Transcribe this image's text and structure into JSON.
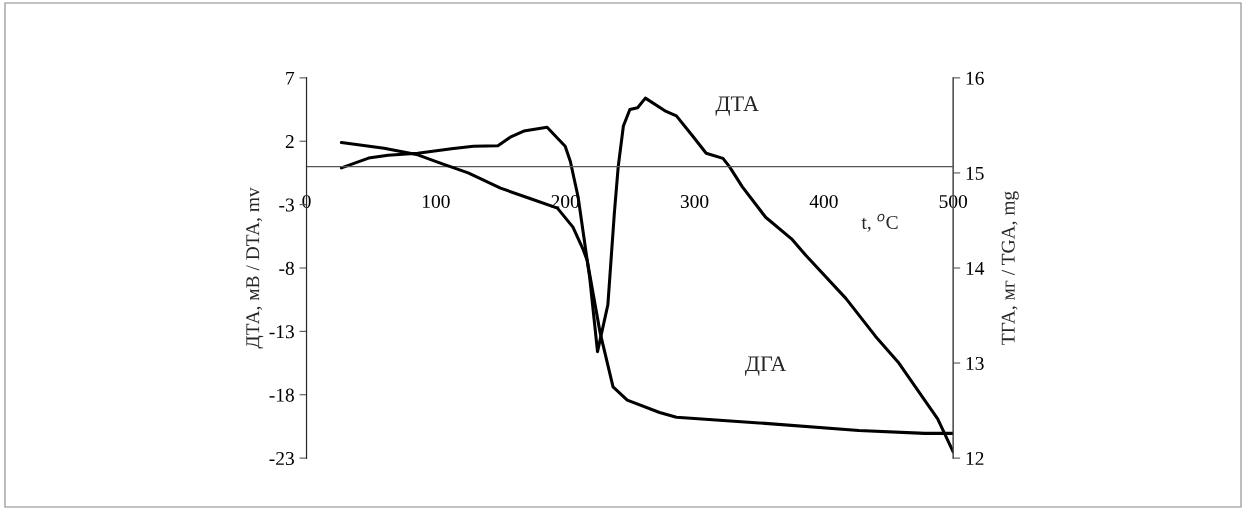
{
  "chart_data": {
    "type": "line",
    "xlabel": "t, $^{o}$C",
    "ylabel": "ДТА, мВ / DTA, mv",
    "y2label": "ТГА, мг / TGA, mg",
    "xlim": [
      0,
      500
    ],
    "xticks": [
      0,
      100,
      200,
      300,
      400,
      500
    ],
    "ylim": [
      -23,
      7
    ],
    "yticks": [
      -23,
      -18,
      -13,
      -8,
      -3,
      2,
      7
    ],
    "y2lim": [
      12,
      16
    ],
    "y2ticks": [
      12,
      13,
      14,
      15,
      16
    ],
    "grid": false,
    "marker": "none",
    "line_style": "solid",
    "series": [
      {
        "color": "#000000",
        "x": [
          27,
          48,
          63,
          86,
          112,
          129,
          148,
          158,
          168,
          186,
          200,
          204,
          210,
          219,
          225,
          233,
          238,
          241,
          245,
          250,
          256,
          262,
          278,
          286,
          299,
          309,
          322,
          327,
          337,
          355,
          375,
          386,
          417,
          440,
          458,
          488,
          500
        ],
        "values": [
          -0.1,
          0.67,
          0.9,
          1.05,
          1.4,
          1.6,
          1.65,
          2.35,
          2.8,
          3.1,
          1.6,
          0.4,
          -2.4,
          -8.8,
          -14.6,
          -10.9,
          -3.7,
          0,
          3.2,
          4.5,
          4.65,
          5.4,
          4.35,
          4.0,
          2.35,
          1.05,
          0.65,
          0,
          -1.6,
          -4.0,
          -5.7,
          -7.0,
          -10.4,
          -13.4,
          -15.5,
          -19.9,
          -22.5
        ]
      },
      {
        "color": "#000000",
        "axis": "y2",
        "x": [
          27,
          60,
          86,
          104,
          125,
          150,
          175,
          194,
          206,
          214,
          217,
          227,
          237,
          248,
          273,
          286,
          350,
          427,
          478,
          500
        ],
        "values": [
          15.32,
          15.26,
          15.19,
          15.1,
          15.0,
          14.84,
          14.72,
          14.63,
          14.43,
          14.19,
          14.08,
          13.32,
          12.75,
          12.61,
          12.48,
          12.43,
          12.37,
          12.29,
          12.26,
          12.26
        ]
      }
    ],
    "annotations": [
      "ДТА",
      "ДГА"
    ]
  }
}
